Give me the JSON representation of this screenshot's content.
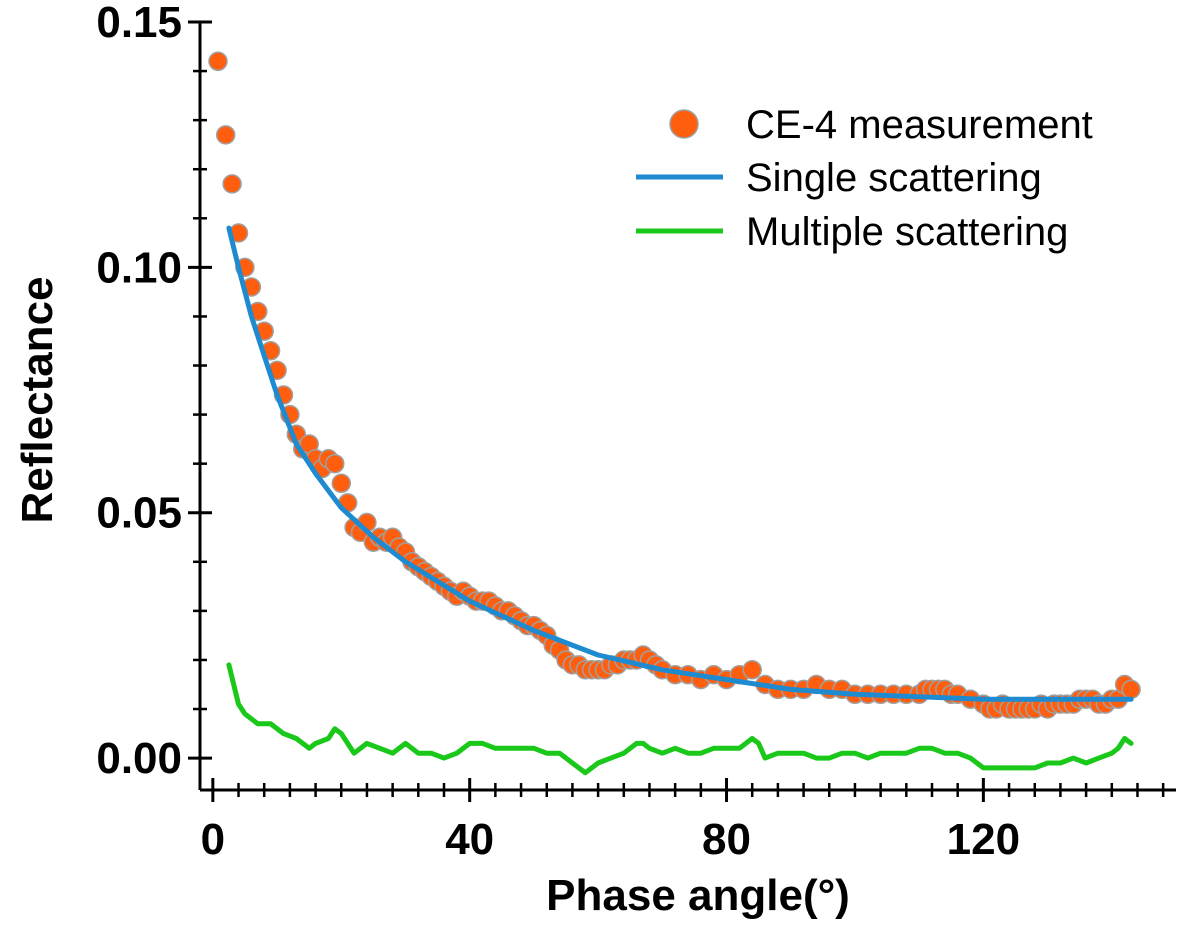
{
  "chart_data": {
    "type": "scatter",
    "title": "",
    "xlabel": "Phase angle(°)",
    "ylabel": "Reflectance",
    "xlim": [
      -2,
      150
    ],
    "ylim": [
      -0.0065,
      0.15
    ],
    "xticks": [
      0,
      40,
      80,
      120
    ],
    "xtick_labels": [
      "0",
      "40",
      "80",
      "120"
    ],
    "yticks": [
      0.0,
      0.05,
      0.1,
      0.15
    ],
    "ytick_labels": [
      "0.00",
      "0.05",
      "0.10",
      "0.15"
    ],
    "legend_position": "top-right",
    "colors": {
      "measurement": "#FF5E0E",
      "measurement_edge": "#A0A0A0",
      "single": "#1E8AD0",
      "multiple": "#19C819",
      "axis": "#000000"
    },
    "series": [
      {
        "name": "CE-4 measurement",
        "kind": "scatter",
        "x": [
          0.8,
          2,
          3,
          4,
          5,
          6,
          7,
          8,
          9,
          10,
          11,
          12,
          13,
          14,
          15,
          16,
          17,
          18,
          19,
          20,
          21,
          22,
          23,
          24,
          25,
          26,
          27,
          28,
          29,
          30,
          31,
          32,
          33,
          34,
          35,
          36,
          37,
          38,
          39,
          40,
          41,
          42,
          43,
          44,
          45,
          46,
          47,
          48,
          49,
          50,
          51,
          52,
          53,
          54,
          55,
          56,
          57,
          58,
          59,
          60,
          61,
          62,
          63,
          64,
          65,
          66,
          67,
          68,
          69,
          70,
          72,
          74,
          76,
          78,
          80,
          82,
          84,
          86,
          88,
          90,
          92,
          94,
          96,
          98,
          100,
          102,
          104,
          106,
          108,
          110,
          111,
          112,
          113,
          114,
          115,
          116,
          118,
          120,
          121,
          122,
          123,
          124,
          125,
          126,
          127,
          128,
          129,
          130,
          131,
          132,
          133,
          134,
          135,
          136,
          137,
          138,
          139,
          140,
          141,
          142,
          143
        ],
        "y": [
          0.142,
          0.127,
          0.117,
          0.107,
          0.1,
          0.096,
          0.091,
          0.087,
          0.083,
          0.079,
          0.074,
          0.07,
          0.066,
          0.063,
          0.064,
          0.061,
          0.059,
          0.061,
          0.06,
          0.056,
          0.052,
          0.047,
          0.046,
          0.048,
          0.044,
          0.045,
          0.044,
          0.045,
          0.043,
          0.042,
          0.04,
          0.039,
          0.038,
          0.037,
          0.036,
          0.035,
          0.034,
          0.033,
          0.034,
          0.033,
          0.032,
          0.032,
          0.032,
          0.031,
          0.03,
          0.03,
          0.029,
          0.028,
          0.027,
          0.027,
          0.026,
          0.025,
          0.023,
          0.022,
          0.02,
          0.019,
          0.019,
          0.018,
          0.018,
          0.018,
          0.018,
          0.019,
          0.019,
          0.02,
          0.02,
          0.02,
          0.021,
          0.02,
          0.019,
          0.018,
          0.017,
          0.017,
          0.016,
          0.017,
          0.016,
          0.017,
          0.018,
          0.015,
          0.014,
          0.014,
          0.014,
          0.015,
          0.014,
          0.014,
          0.013,
          0.013,
          0.013,
          0.013,
          0.013,
          0.013,
          0.014,
          0.014,
          0.014,
          0.014,
          0.013,
          0.013,
          0.012,
          0.011,
          0.01,
          0.01,
          0.011,
          0.01,
          0.01,
          0.01,
          0.01,
          0.01,
          0.011,
          0.01,
          0.011,
          0.011,
          0.011,
          0.011,
          0.012,
          0.012,
          0.012,
          0.011,
          0.011,
          0.012,
          0.012,
          0.015,
          0.014
        ]
      },
      {
        "name": "Single scattering",
        "kind": "line",
        "x": [
          2.5,
          4,
          6,
          8,
          10,
          13,
          16,
          20,
          25,
          30,
          40,
          50,
          60,
          70,
          80,
          90,
          100,
          110,
          120,
          130,
          140,
          143
        ],
        "y": [
          0.108,
          0.1,
          0.09,
          0.082,
          0.074,
          0.064,
          0.058,
          0.051,
          0.045,
          0.04,
          0.032,
          0.026,
          0.021,
          0.018,
          0.016,
          0.014,
          0.013,
          0.0125,
          0.012,
          0.012,
          0.012,
          0.012
        ]
      },
      {
        "name": "Multiple scattering",
        "kind": "line",
        "x": [
          2.5,
          4,
          5,
          7,
          9,
          11,
          13,
          15,
          16,
          18,
          19,
          20,
          22,
          24,
          26,
          28,
          30,
          32,
          34,
          36,
          38,
          40,
          42,
          44,
          46,
          48,
          50,
          52,
          54,
          56,
          58,
          60,
          62,
          64,
          66,
          67,
          68,
          70,
          72,
          74,
          76,
          78,
          80,
          82,
          84,
          85,
          86,
          88,
          90,
          92,
          94,
          96,
          98,
          100,
          102,
          104,
          106,
          108,
          110,
          112,
          114,
          116,
          118,
          120,
          122,
          124,
          126,
          128,
          130,
          132,
          134,
          136,
          138,
          140,
          141,
          142,
          143
        ],
        "y": [
          0.019,
          0.011,
          0.009,
          0.007,
          0.007,
          0.005,
          0.004,
          0.002,
          0.003,
          0.004,
          0.006,
          0.005,
          0.001,
          0.003,
          0.002,
          0.001,
          0.003,
          0.001,
          0.001,
          0.0,
          0.001,
          0.003,
          0.003,
          0.002,
          0.002,
          0.002,
          0.002,
          0.001,
          0.001,
          -0.001,
          -0.003,
          -0.001,
          0.0,
          0.001,
          0.003,
          0.003,
          0.002,
          0.001,
          0.002,
          0.001,
          0.001,
          0.002,
          0.002,
          0.002,
          0.004,
          0.003,
          0.0,
          0.001,
          0.001,
          0.001,
          0.0,
          0.0,
          0.001,
          0.001,
          0.0,
          0.001,
          0.001,
          0.001,
          0.002,
          0.002,
          0.001,
          0.001,
          0.0,
          -0.002,
          -0.002,
          -0.002,
          -0.002,
          -0.002,
          -0.001,
          -0.001,
          0.0,
          -0.001,
          0.0,
          0.001,
          0.002,
          0.004,
          0.003
        ]
      }
    ]
  }
}
